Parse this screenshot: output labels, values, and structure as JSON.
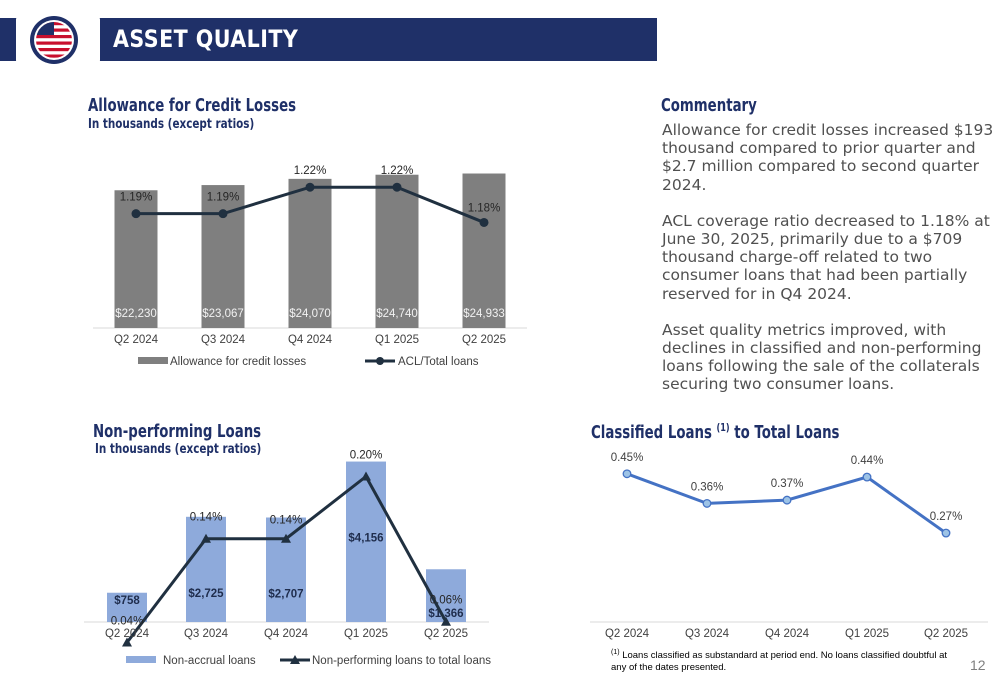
{
  "header": {
    "title": "ASSET QUALITY"
  },
  "page_number": "12",
  "colors": {
    "navy": "#1f3068",
    "gray_bar": "#7f7f7f",
    "light_blue_bar": "#8eaadb",
    "line_blue": "#4472c4",
    "line_dark": "#203040"
  },
  "acl": {
    "title": "Allowance for Credit Losses",
    "subtitle": "In thousands (except ratios)"
  },
  "npl": {
    "title": "Non-performing Loans",
    "subtitle": "In thousands (except ratios)"
  },
  "classified": {
    "title_pre": "Classified Loans ",
    "title_sup": "(1)",
    "title_post": " to Total Loans"
  },
  "commentary": {
    "title": "Commentary",
    "p1": "Allowance for credit losses increased $193 thousand compared to prior quarter and $2.7 million compared to second quarter 2024.",
    "p2": "ACL coverage ratio decreased to 1.18% at June 30, 2025, primarily due to a $709 thousand charge-off related to two consumer loans that had been partially reserved for in Q4 2024.",
    "p3": "Asset quality metrics improved, with declines in classified and non-performing loans following the sale of the collaterals securing two consumer loans."
  },
  "footnote": {
    "sup": "(1)",
    "text": " Loans classified as substandard at period end. No loans classified doubtful at any of the dates presented."
  },
  "chart_data": [
    {
      "type": "bar",
      "categories": [
        "Q2 2024",
        "Q3 2024",
        "Q4 2024",
        "Q1 2025",
        "Q2 2025"
      ],
      "series": [
        {
          "name": "Allowance for credit losses",
          "type": "bar",
          "values": [
            22230,
            23067,
            24070,
            24740,
            24933
          ],
          "labels": [
            "$22,230",
            "$23,067",
            "$24,070",
            "$24,740",
            "$24,933"
          ]
        },
        {
          "name": "ACL/Total loans",
          "type": "line",
          "values": [
            1.19,
            1.19,
            1.22,
            1.22,
            1.18
          ],
          "labels": [
            "1.19%",
            "1.19%",
            "1.22%",
            "1.22%",
            "1.18%"
          ]
        }
      ],
      "bar_range": [
        0,
        25500
      ],
      "line_range": [
        0.95,
        1.235
      ],
      "legend": "bottom"
    },
    {
      "type": "bar",
      "categories": [
        "Q2 2024",
        "Q3 2024",
        "Q4 2024",
        "Q1 2025",
        "Q2 2025"
      ],
      "series": [
        {
          "name": "Non-accrual loans",
          "type": "bar",
          "values": [
            758,
            2725,
            2707,
            4156,
            1366
          ],
          "labels": [
            "$758",
            "$2,725",
            "$2,707",
            "$4,156",
            "$1,366"
          ]
        },
        {
          "name": "Non-performing loans to total loans",
          "type": "line",
          "values": [
            0.04,
            0.14,
            0.14,
            0.2,
            0.06
          ],
          "labels": [
            "0.04%",
            "0.14%",
            "0.14%",
            "0.20%",
            "0.06%"
          ]
        }
      ],
      "bar_range": [
        0,
        4300
      ],
      "line_range": [
        0,
        0.213
      ],
      "legend": "bottom"
    },
    {
      "type": "line",
      "categories": [
        "Q2 2024",
        "Q3 2024",
        "Q4 2024",
        "Q1 2025",
        "Q2 2025"
      ],
      "series": [
        {
          "name": "",
          "values": [
            0.45,
            0.36,
            0.37,
            0.44,
            0.27
          ],
          "labels": [
            "0.45%",
            "0.36%",
            "0.37%",
            "0.44%",
            "0.27%"
          ]
        }
      ],
      "y_range": [
        0,
        0.51
      ],
      "legend": "none"
    }
  ]
}
